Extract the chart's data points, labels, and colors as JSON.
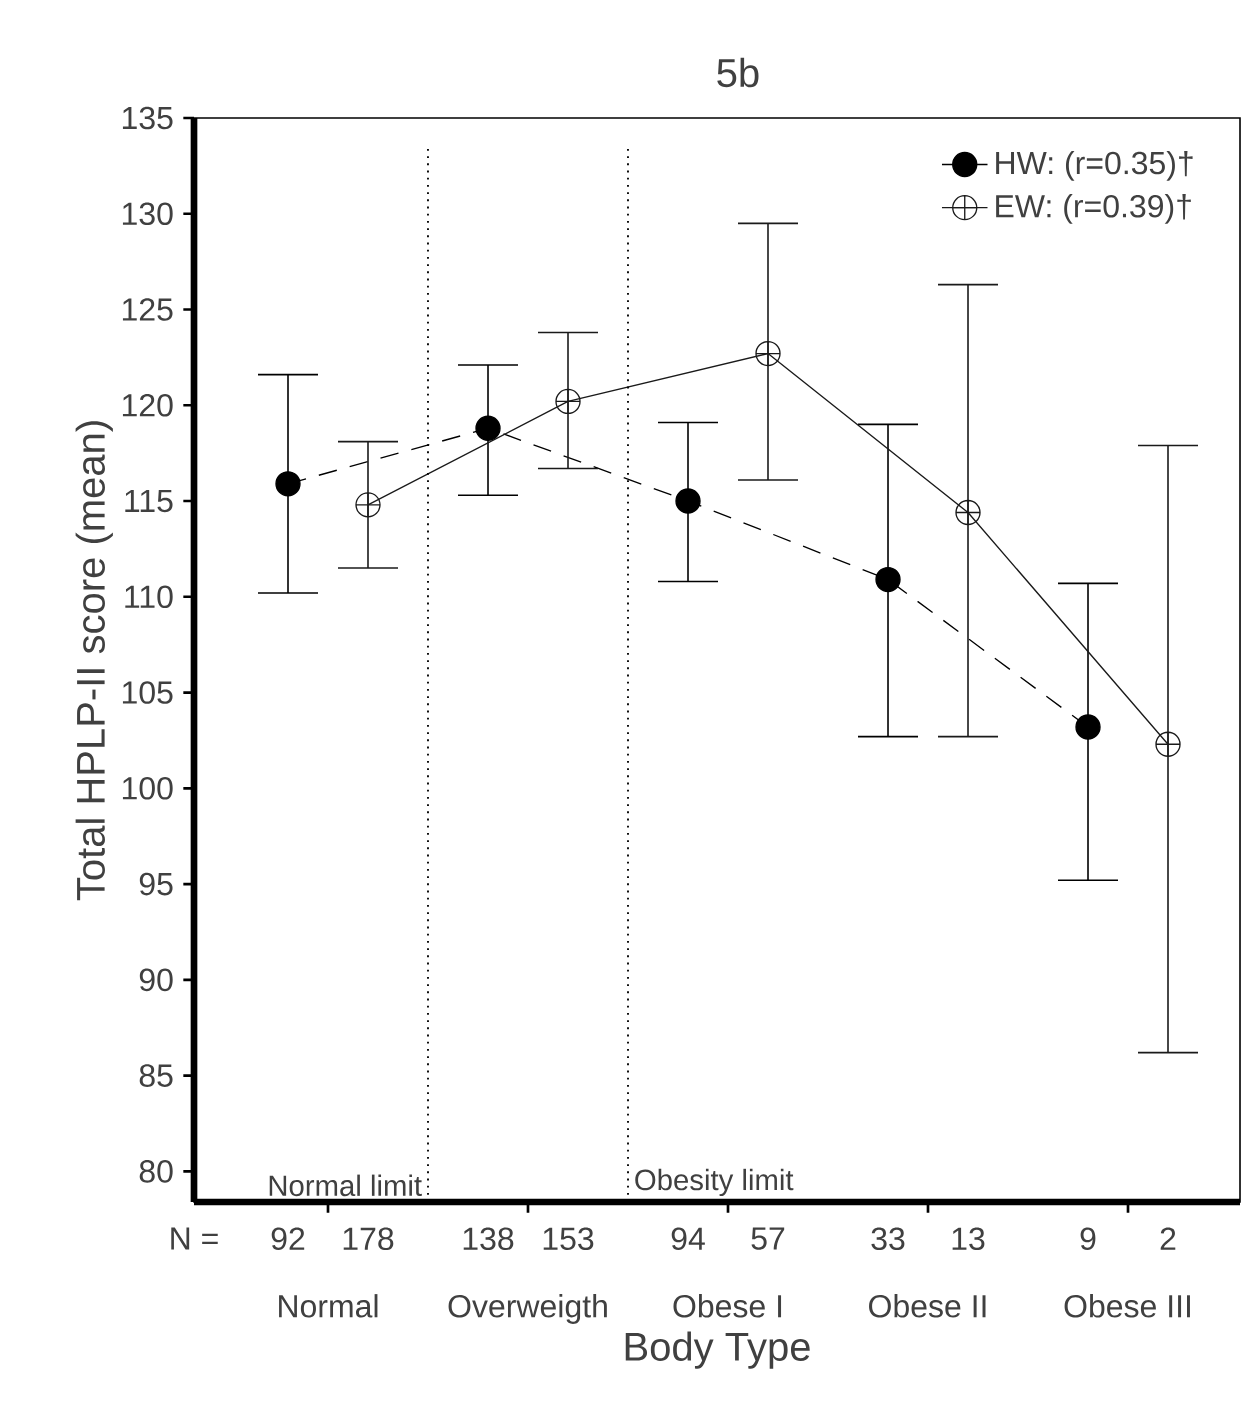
{
  "chart_data": {
    "type": "line",
    "title": "5b",
    "xlabel": "Body Type",
    "ylabel": "Total HPLP-II score (mean)",
    "categories": [
      "Normal",
      "Overweigth",
      "Obese I",
      "Obese II",
      "Obese III"
    ],
    "series": [
      {
        "name": "HW: (r=0.35)†",
        "color": "#000000",
        "marker": "circle",
        "line_style": "dashed",
        "values": [
          115.9,
          118.8,
          115.0,
          110.9,
          103.2
        ],
        "errors": [
          [
            110.2,
            121.6
          ],
          [
            115.3,
            122.1
          ],
          [
            110.8,
            119.1
          ],
          [
            102.7,
            119.0
          ],
          [
            95.2,
            110.7
          ]
        ]
      },
      {
        "name": "EW: (r=0.39)†",
        "color": "#1a1a1a",
        "marker": "cross",
        "line_style": "solid",
        "values": [
          114.8,
          120.2,
          122.7,
          114.4,
          102.3
        ],
        "errors": [
          [
            111.5,
            118.1
          ],
          [
            116.7,
            123.8
          ],
          [
            116.1,
            129.5
          ],
          [
            102.7,
            126.3
          ],
          [
            86.2,
            117.9
          ]
        ]
      }
    ],
    "ylim": [
      78.4,
      135
    ],
    "yticks": [
      80,
      85,
      90,
      95,
      100,
      105,
      110,
      115,
      120,
      125,
      130,
      135
    ],
    "annotations": [
      "Normal limit",
      "Obesity limit",
      "N =",
      "92",
      "178",
      "138",
      "153",
      "94",
      "57",
      "33",
      "13",
      "9",
      "2"
    ],
    "legend": "top right",
    "grid": false
  }
}
